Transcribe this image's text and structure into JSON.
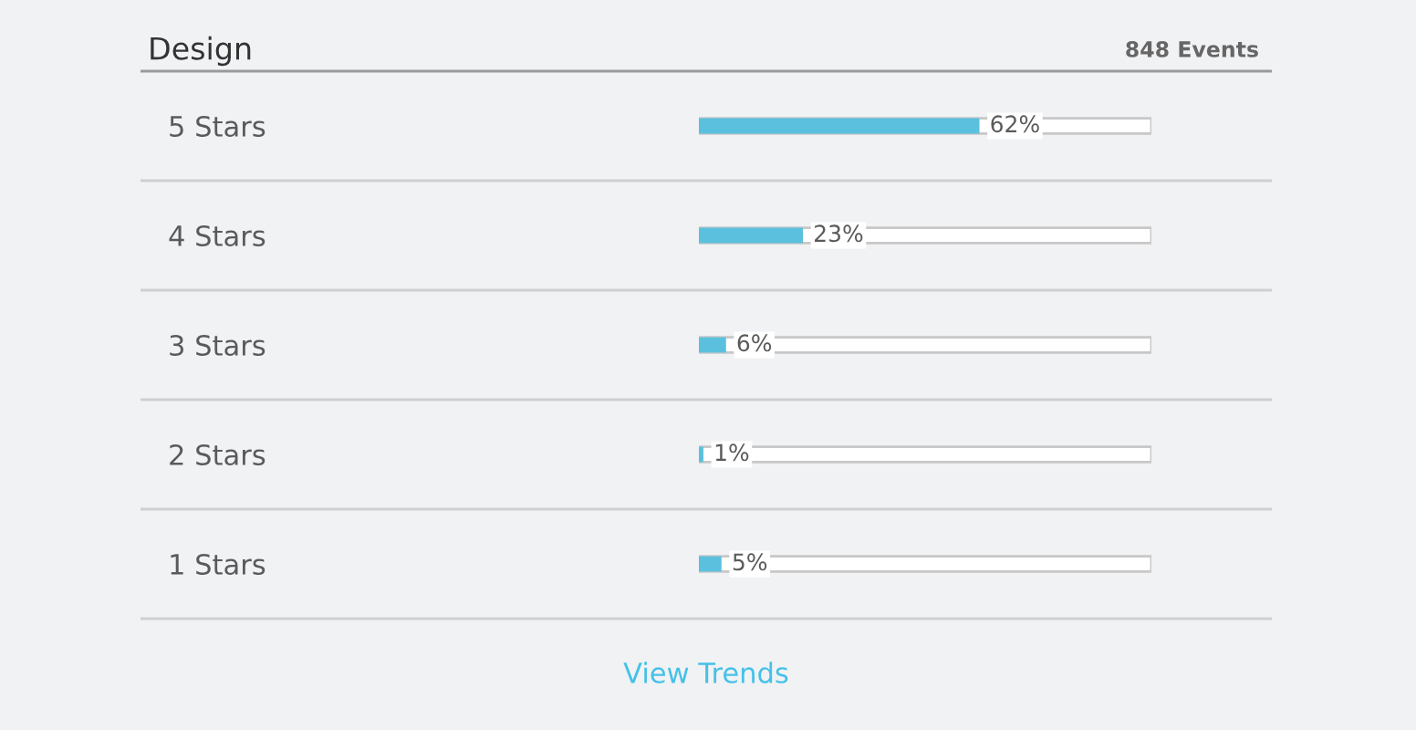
{
  "chart_data": {
    "type": "bar",
    "orientation": "horizontal",
    "title": "Design",
    "categories": [
      "5 Stars",
      "4 Stars",
      "3 Stars",
      "2 Stars",
      "1 Stars"
    ],
    "values": [
      62,
      23,
      6,
      1,
      5
    ],
    "value_labels": [
      "62%",
      "23%",
      "6%",
      "1%",
      "5%"
    ],
    "color": "#5bc0de",
    "xlim": [
      0,
      100
    ],
    "tick_labels": "y",
    "grid": false,
    "annotations": [
      "848 Events",
      "View Trends"
    ]
  }
}
